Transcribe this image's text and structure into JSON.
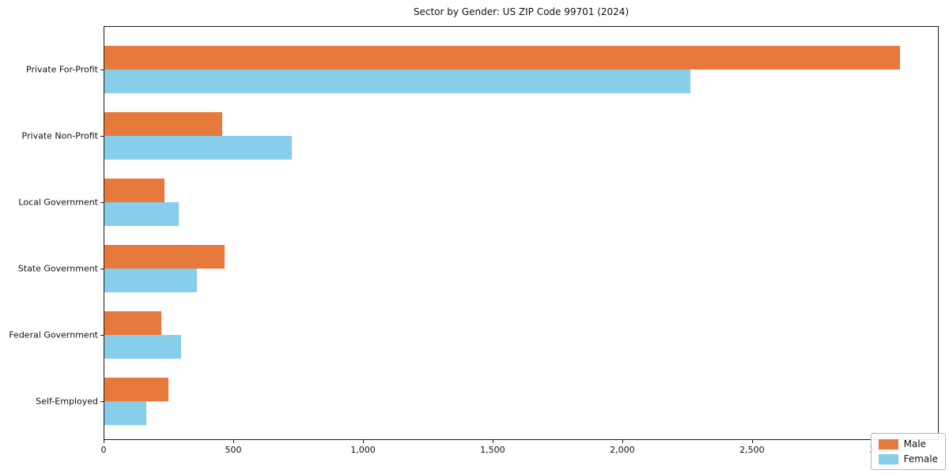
{
  "chart_data": {
    "type": "bar",
    "orientation": "horizontal",
    "title": "Sector by Gender: US ZIP Code 99701 (2024)",
    "categories": [
      "Private For-Profit",
      "Private Non-Profit",
      "Local Government",
      "State Government",
      "Federal Government",
      "Self-Employed"
    ],
    "series": [
      {
        "name": "Male",
        "color": "#e8793d",
        "values": [
          3067,
          455,
          232,
          464,
          220,
          247
        ]
      },
      {
        "name": "Female",
        "color": "#87ceeb",
        "values": [
          2258,
          724,
          287,
          357,
          296,
          162
        ]
      }
    ],
    "xlabel": "",
    "ylabel": "",
    "xlim": [
      0,
      3220
    ],
    "xticks": [
      0,
      500,
      1000,
      1500,
      2000,
      2500,
      3000
    ],
    "xtick_labels": [
      "0",
      "500",
      "1,000",
      "1,500",
      "2,000",
      "2,500",
      "3,000"
    ],
    "grid": false,
    "legend_position": "lower right",
    "frame_color": "#1a1a1a",
    "background_color": "#ffffff"
  }
}
